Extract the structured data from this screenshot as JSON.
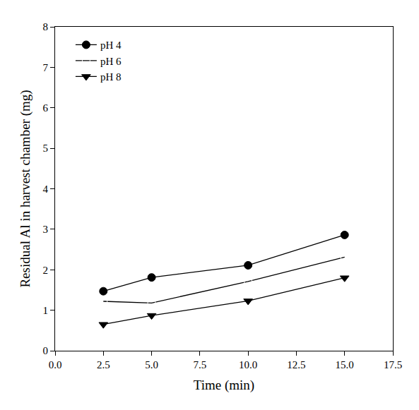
{
  "chart_data": {
    "type": "line",
    "x_label": "Time (min)",
    "y_label": "Residual Al in harvest chamber (mg)",
    "x": [
      2.5,
      5,
      10,
      15
    ],
    "series": [
      {
        "name": "pH 4",
        "color": "#000000",
        "marker": "circle",
        "line_style": "solid",
        "values": [
          1.47,
          1.81,
          2.11,
          2.86
        ]
      },
      {
        "name": "pH 6",
        "color": "#000000",
        "marker": "circle-open",
        "line_style": "solid",
        "values": [
          1.22,
          1.18,
          1.71,
          2.31
        ]
      },
      {
        "name": "pH 8",
        "color": "#000000",
        "marker": "triangle-down",
        "line_style": "solid",
        "values": [
          0.65,
          0.87,
          1.23,
          1.8
        ]
      }
    ],
    "xlim": [
      0,
      17.5
    ],
    "xticks": [
      {
        "value": 0,
        "label": "0.0"
      },
      2.5,
      {
        "value": 5,
        "label": "5.0"
      },
      7.5,
      {
        "value": 10,
        "label": "10.0"
      },
      12.5,
      {
        "value": 15,
        "label": "15.0"
      },
      17.5
    ],
    "ylim": [
      0,
      8
    ],
    "yticks": [
      0,
      1,
      2,
      3,
      4,
      5,
      6,
      7,
      8
    ],
    "grid": false,
    "legend": "top-left"
  }
}
